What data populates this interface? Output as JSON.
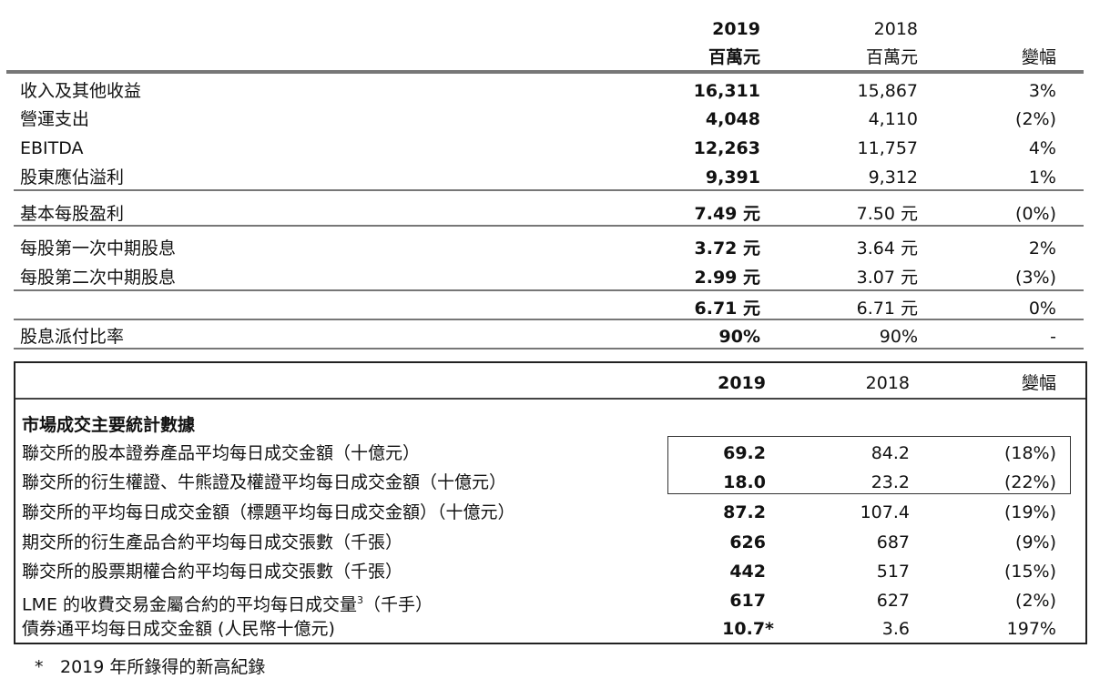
{
  "summary": {
    "headers": {
      "y2019": "2019",
      "y2018": "2018",
      "unit2019": "百萬元",
      "unit2018": "百萬元",
      "change": "變幅"
    },
    "rows": [
      {
        "label": "收入及其他收益",
        "v2019": "16,311",
        "v2018": "15,867",
        "change": "3%"
      },
      {
        "label": "營運支出",
        "v2019": "4,048",
        "v2018": "4,110",
        "change": "(2%)"
      },
      {
        "label": "EBITDA",
        "v2019": "12,263",
        "v2018": "11,757",
        "change": "4%"
      },
      {
        "label": "股東應佔溢利",
        "v2019": "9,391",
        "v2018": "9,312",
        "change": "1%"
      },
      {
        "label": "基本每股盈利",
        "v2019": "7.49 元",
        "v2018": "7.50 元",
        "change": "(0%)"
      },
      {
        "label": "每股第一次中期股息",
        "v2019": "3.72 元",
        "v2018": "3.64 元",
        "change": "2%"
      },
      {
        "label": "每股第二次中期股息",
        "v2019": "2.99 元",
        "v2018": "3.07 元",
        "change": "(3%)"
      },
      {
        "label": "",
        "v2019": "6.71 元",
        "v2018": "6.71 元",
        "change": "0%"
      },
      {
        "label": "股息派付比率",
        "v2019": "90%",
        "v2018": "90%",
        "change": "-"
      }
    ]
  },
  "market": {
    "headers": {
      "y2019": "2019",
      "y2018": "2018",
      "change": "變幅"
    },
    "section_title": "市場成交主要統計數據",
    "rows": [
      {
        "label": "聯交所的股本證券產品平均每日成交金額（十億元）",
        "v2019": "69.2",
        "v2018": "84.2",
        "change": "(18%)"
      },
      {
        "label": "聯交所的衍生權證、牛熊證及權證平均每日成交金額（十億元）",
        "v2019": "18.0",
        "v2018": "23.2",
        "change": "(22%)"
      },
      {
        "label": "聯交所的平均每日成交金額（標題平均每日成交金額）（十億元）",
        "v2019": "87.2",
        "v2018": "107.4",
        "change": "(19%)"
      },
      {
        "label": "期交所的衍生產品合約平均每日成交張數（千張）",
        "v2019": "626",
        "v2018": "687",
        "change": "(9%)"
      },
      {
        "label": "聯交所的股票期權合約平均每日成交張數（千張）",
        "v2019": "442",
        "v2018": "517",
        "change": "(15%)"
      },
      {
        "label": "LME 的收費交易金屬合約的平均每日成交量",
        "label_sup": "3",
        "label_suffix": "（千手）",
        "v2019": "617",
        "v2018": "627",
        "change": "(2%)"
      },
      {
        "label": "債券通平均每日成交金額 (人民幣十億元)",
        "v2019": "10.7*",
        "v2018": "3.6",
        "change": "197%"
      }
    ]
  },
  "footnote": {
    "marker": "*",
    "text": "2019 年所錄得的新高紀錄"
  }
}
